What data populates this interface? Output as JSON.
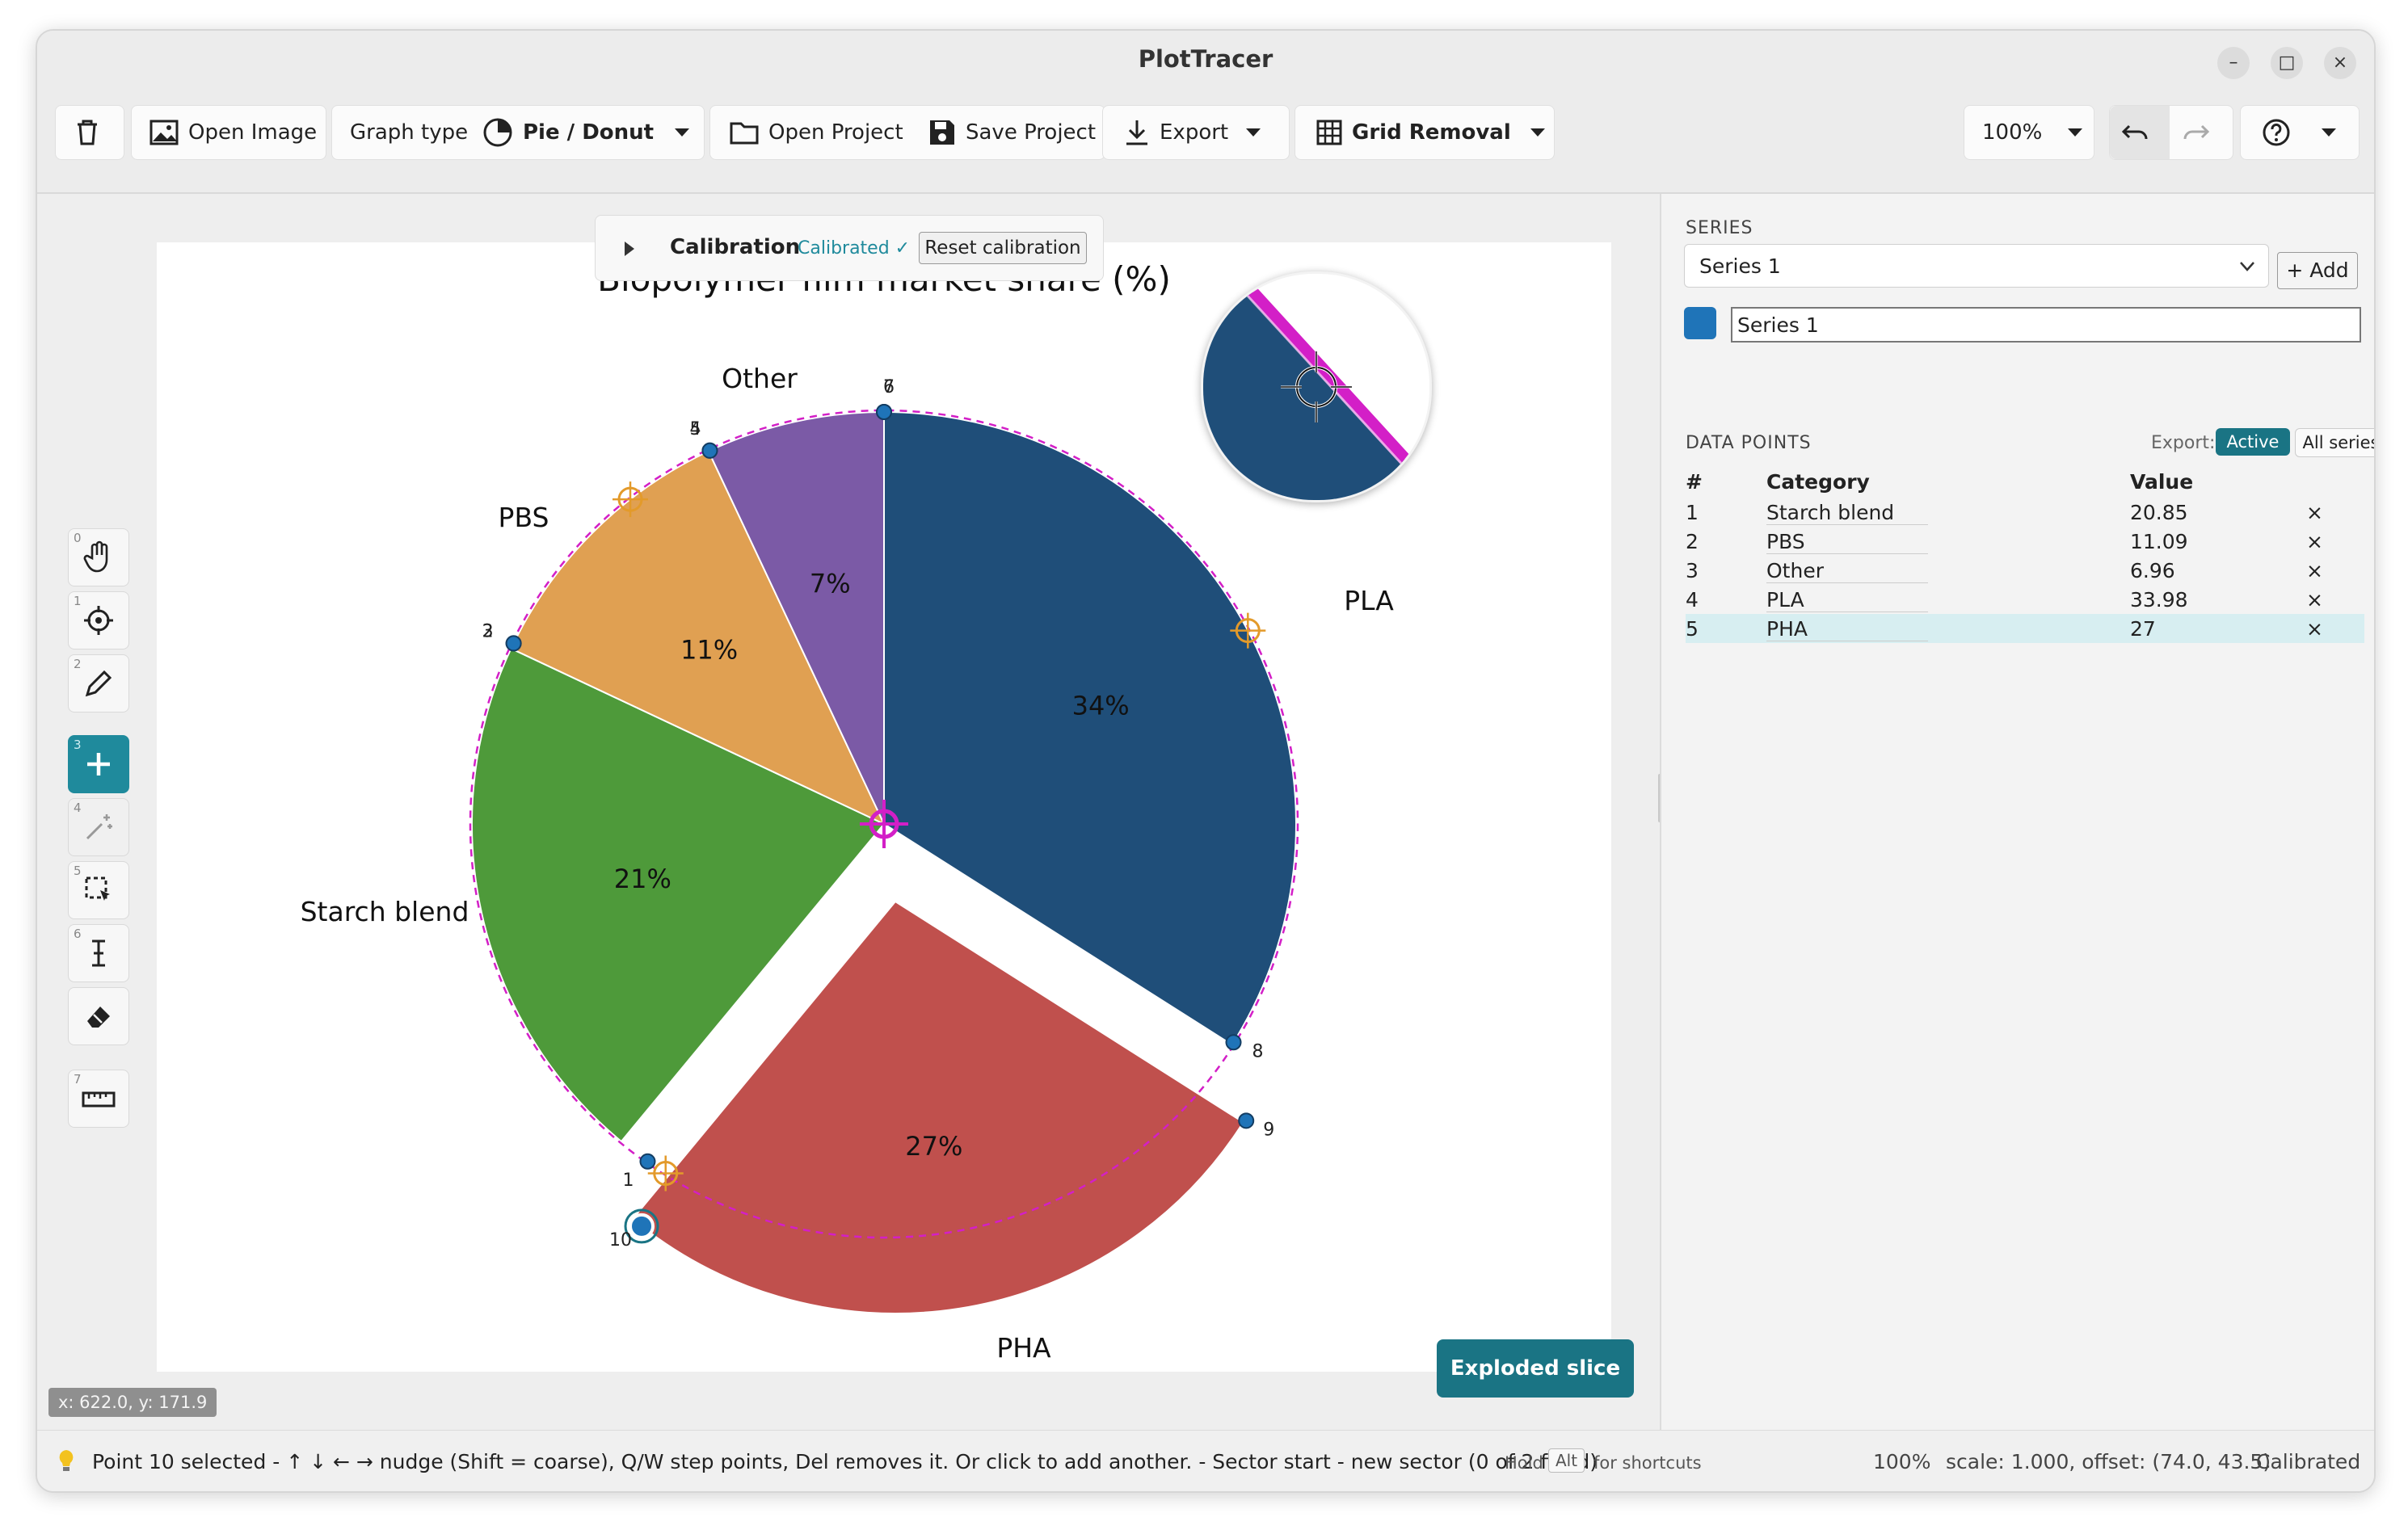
{
  "window": {
    "title": "PlotTracer"
  },
  "toolbar": {
    "open_image": "Open Image",
    "graph_type_label": "Graph type",
    "graph_type_value": "Pie / Donut",
    "open_project": "Open Project",
    "save_project": "Save Project",
    "export": "Export",
    "grid_removal": "Grid Removal",
    "zoom": "100%"
  },
  "calibration": {
    "label": "Calibration",
    "status": "Calibrated ✓",
    "reset": "Reset calibration"
  },
  "tools": [
    "0",
    "1",
    "2",
    "3",
    "4",
    "5",
    "6",
    "7"
  ],
  "chart_data": {
    "type": "pie",
    "title": "Biopolymer film market share (%)",
    "categories": [
      "PLA",
      "PHA",
      "Starch blend",
      "PBS",
      "Other"
    ],
    "values": [
      34,
      27,
      21,
      11,
      7
    ],
    "labels": [
      "34%",
      "27%",
      "21%",
      "11%",
      "7%"
    ],
    "colors": [
      "#1f4e79",
      "#c0504d",
      "#4e9a3a",
      "#e0a052",
      "#7b5aa6"
    ],
    "exploded": "PHA"
  },
  "markers": [
    "1",
    "2",
    "3",
    "4",
    "5",
    "6",
    "7",
    "8",
    "9",
    "10"
  ],
  "coords_readout": "x: 622.0, y: 171.9",
  "exploded_button": "Exploded slice",
  "side": {
    "series_header": "SERIES",
    "series_select": "Series 1",
    "add_button": "+ Add",
    "series_name": "Series 1",
    "series_color": "#1f74b8",
    "data_points_header": "DATA POINTS",
    "export_label": "Export:",
    "export_active": "Active",
    "export_all": "All series",
    "col_num": "#",
    "col_category": "Category",
    "col_value": "Value",
    "rows": [
      {
        "num": "1",
        "category": "Starch blend",
        "value": "20.85",
        "remove": "×"
      },
      {
        "num": "2",
        "category": "PBS",
        "value": "11.09",
        "remove": "×"
      },
      {
        "num": "3",
        "category": "Other",
        "value": "6.96",
        "remove": "×"
      },
      {
        "num": "4",
        "category": "PLA",
        "value": "33.98",
        "remove": "×"
      },
      {
        "num": "5",
        "category": "PHA",
        "value": "27",
        "remove": "×"
      }
    ]
  },
  "status": {
    "message": "Point 10 selected - ↑ ↓ ← → nudge (Shift = coarse), Q/W step points, Del removes it. Or click to add another. - Sector start - new sector (0 of 2 filled)",
    "hold": "Hold",
    "alt": "Alt",
    "for_shortcuts": "for shortcuts",
    "zoom": "100%",
    "scale": "scale: 1.000, offset: (74.0, 43.5)",
    "calibrated": "Calibrated"
  }
}
